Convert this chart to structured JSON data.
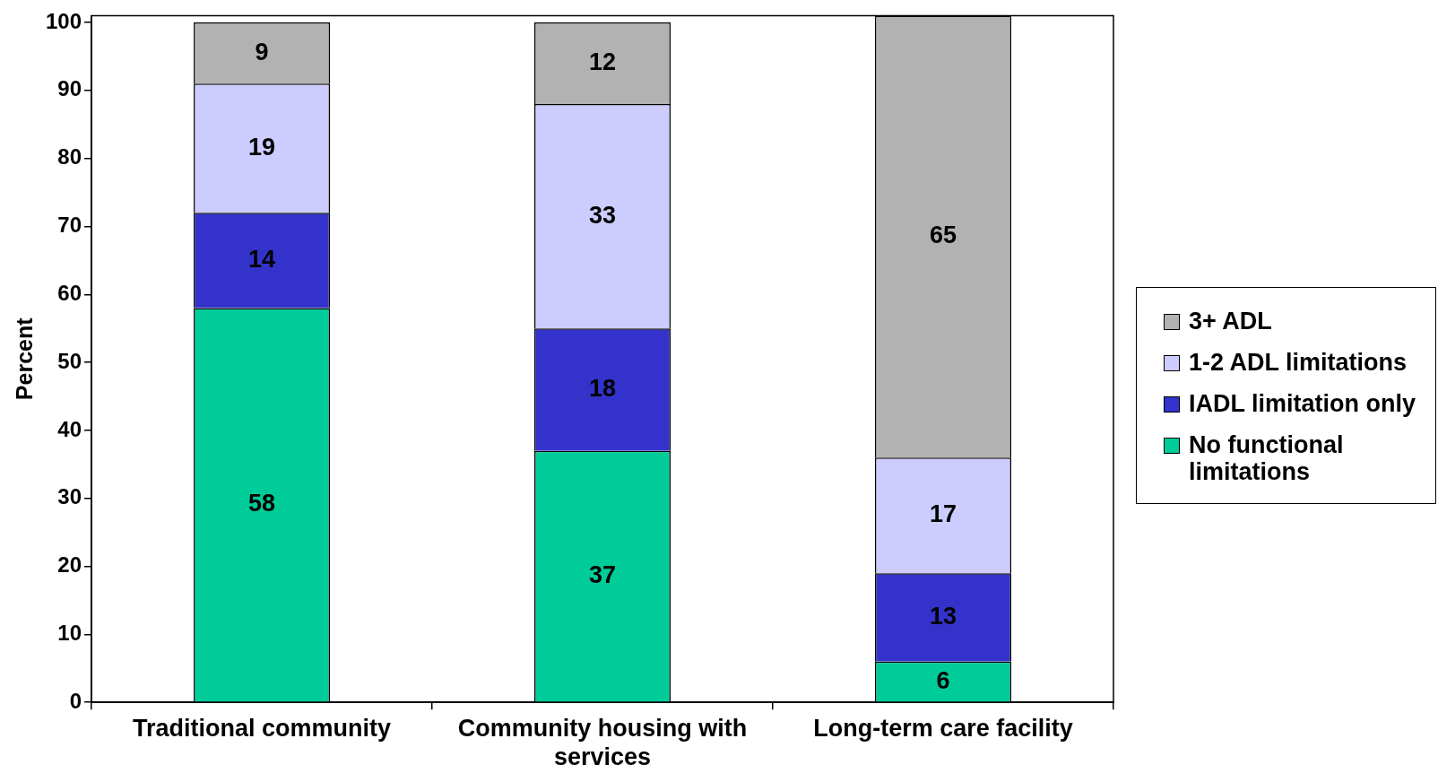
{
  "chart_data": {
    "type": "bar",
    "stacked": true,
    "ylabel": "Percent",
    "categories": [
      "Traditional community",
      "Community housing with services",
      "Long-term care facility"
    ],
    "series": [
      {
        "name": "No functional limitations",
        "color": "#00cc99",
        "values": [
          58,
          37,
          6
        ]
      },
      {
        "name": "IADL limitation only",
        "color": "#3333cc",
        "values": [
          14,
          18,
          13
        ]
      },
      {
        "name": "1-2 ADL limitations",
        "color": "#ccccff",
        "values": [
          19,
          33,
          17
        ]
      },
      {
        "name": "3+ ADL",
        "color": "#b2b2b2",
        "values": [
          9,
          12,
          65
        ]
      }
    ],
    "ylim": [
      0,
      101
    ],
    "yticks": [
      0,
      10,
      20,
      30,
      40,
      50,
      60,
      70,
      80,
      90,
      100
    ],
    "data_labels": true,
    "grid": false,
    "legend": "right"
  }
}
